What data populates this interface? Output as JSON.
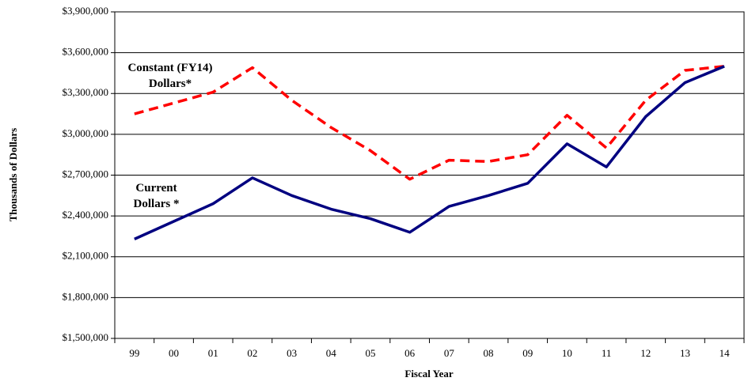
{
  "chart_data": {
    "type": "line",
    "x_label": "Fiscal Year",
    "y_label": "Thousands of Dollars",
    "categories": [
      "99",
      "00",
      "01",
      "02",
      "03",
      "04",
      "05",
      "06",
      "07",
      "08",
      "09",
      "10",
      "11",
      "12",
      "13",
      "14"
    ],
    "series": [
      {
        "name": "Constant (FY14) Dollars*",
        "color": "#ff0000",
        "dashed": true,
        "values": [
          3150000,
          3230000,
          3310000,
          3490000,
          3250000,
          3050000,
          2880000,
          2670000,
          2810000,
          2800000,
          2850000,
          3140000,
          2900000,
          3250000,
          3470000,
          3500000
        ]
      },
      {
        "name": "Current Dollars *",
        "color": "#000080",
        "dashed": false,
        "values": [
          2230000,
          2360000,
          2490000,
          2680000,
          2550000,
          2450000,
          2380000,
          2280000,
          2470000,
          2550000,
          2640000,
          2930000,
          2760000,
          3130000,
          3380000,
          3500000
        ]
      }
    ],
    "ylim": [
      1500000,
      3900000
    ],
    "yticks": [
      {
        "value": 1500000,
        "label": "$1,500,000"
      },
      {
        "value": 1800000,
        "label": "$1,800,000"
      },
      {
        "value": 2100000,
        "label": "$2,100,000"
      },
      {
        "value": 2400000,
        "label": "$2,400,000"
      },
      {
        "value": 2700000,
        "label": "$2,700,000"
      },
      {
        "value": 3000000,
        "label": "$3,000,000"
      },
      {
        "value": 3300000,
        "label": "$3,300,000"
      },
      {
        "value": 3600000,
        "label": "$3,600,000"
      },
      {
        "value": 3900000,
        "label": "$3,900,000"
      }
    ],
    "grid": true
  }
}
